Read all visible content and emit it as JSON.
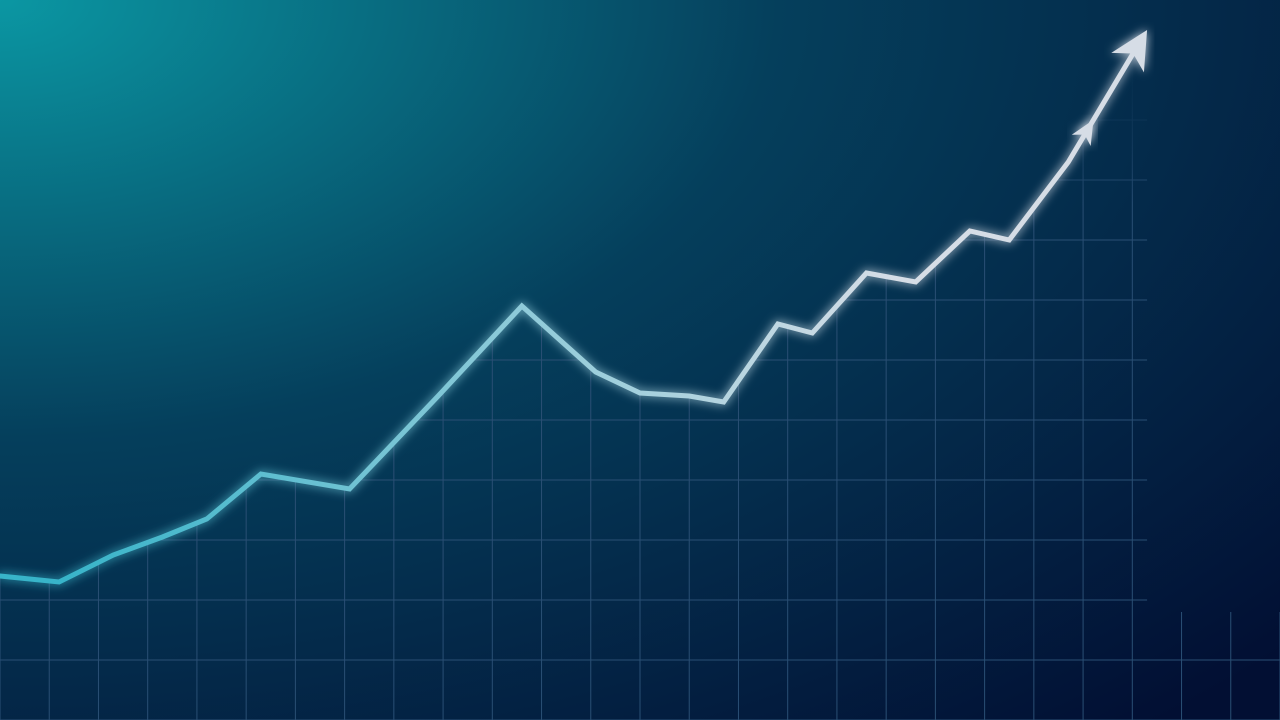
{
  "chart_data": {
    "type": "line",
    "title": "",
    "xlabel": "",
    "ylabel": "",
    "grid": true,
    "legend": "none",
    "xlim": [
      0,
      26
    ],
    "ylim": [
      0,
      12
    ],
    "x": [
      0,
      1.2,
      2.3,
      3.3,
      4.2,
      5.3,
      7.1,
      8.9,
      10.6,
      12.1,
      13.0,
      14.0,
      14.7,
      15.8,
      16.5,
      17.6,
      18.6,
      19.7,
      20.5,
      21.7,
      23.3
    ],
    "y": [
      2.4,
      2.3,
      2.75,
      3.05,
      3.35,
      4.1,
      3.85,
      5.4,
      6.9,
      5.8,
      5.45,
      5.4,
      5.3,
      6.6,
      6.45,
      7.45,
      7.3,
      8.15,
      8.0,
      9.3,
      11.5
    ],
    "series": [
      {
        "values_ref": "y",
        "end_marker": "arrow"
      }
    ],
    "colors": {
      "background_start": "#0b97a3",
      "background_mid": "#053f5c",
      "background_end": "#020f33",
      "grid": "#2a4f74",
      "line_start": "#38b4c9",
      "line_end": "#d6dde6"
    }
  }
}
